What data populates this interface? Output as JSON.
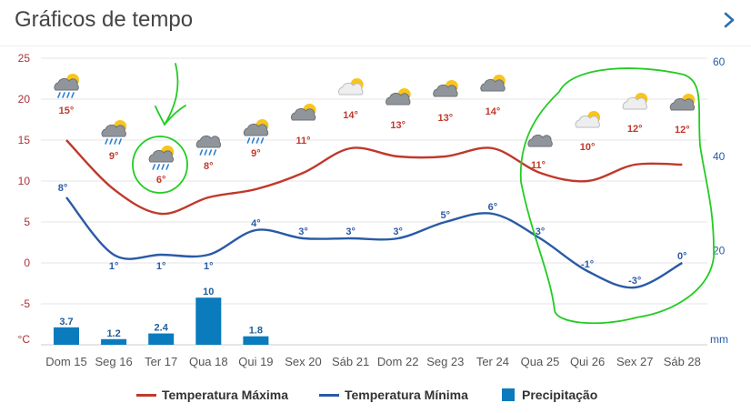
{
  "header": {
    "title": "Gráficos de tempo"
  },
  "colors": {
    "max": "#c0392b",
    "min": "#2a5aa5",
    "precip": "#0a7bbd",
    "grid": "#e6e6e6",
    "left_axis": "#a8333a",
    "right_axis": "#2a5aa5",
    "annotation": "#22cc22"
  },
  "chart_data": {
    "type": "line",
    "categories": [
      "Dom 15",
      "Seg 16",
      "Ter 17",
      "Qua 18",
      "Qui 19",
      "Sex 20",
      "Sáb 21",
      "Dom 22",
      "Seg 23",
      "Ter 24",
      "Qua 25",
      "Qui 26",
      "Sex 27",
      "Sáb 28"
    ],
    "y_left": {
      "ticks": [
        "25",
        "20",
        "15",
        "10",
        "5",
        "0",
        "-5",
        "°C"
      ],
      "ylim": [
        -10,
        25
      ]
    },
    "y_right": {
      "ticks": [
        "60",
        "40",
        "20",
        "mm"
      ],
      "ylim": [
        0,
        60
      ]
    },
    "series": [
      {
        "name": "Temperatura Máxima",
        "type": "line",
        "values": [
          15,
          9,
          6,
          8,
          9,
          11,
          14,
          13,
          13,
          14,
          11,
          10,
          12,
          12
        ],
        "labels": [
          "15°",
          "9°",
          "6°",
          "8°",
          "9°",
          "11°",
          "14°",
          "13°",
          "13°",
          "14°",
          "11°",
          "10°",
          "12°",
          "12°"
        ]
      },
      {
        "name": "Temperatura Mínima",
        "type": "line",
        "values": [
          8,
          1,
          1,
          1,
          4,
          3,
          3,
          3,
          5,
          6,
          3,
          -1,
          -3,
          0
        ],
        "labels": [
          "8°",
          "1°",
          "1°",
          "1°",
          "4°",
          "3°",
          "3°",
          "3°",
          "5°",
          "6°",
          "3°",
          "-1°",
          "-3°",
          "0°"
        ]
      },
      {
        "name": "Precipitação",
        "type": "bar",
        "values": [
          3.7,
          1.2,
          2.4,
          10,
          1.8,
          null,
          null,
          null,
          null,
          null,
          null,
          null,
          null,
          null
        ],
        "labels": [
          "3.7",
          "1.2",
          "2.4",
          "10",
          "1.8",
          "",
          "",
          "",
          "",
          "",
          "",
          "",
          "",
          ""
        ]
      }
    ],
    "weather_icons": [
      "sun-cloud-rain",
      "sun-cloud-rain",
      "sun-cloud-rain",
      "cloud-rain",
      "sun-cloud-rain",
      "sun-cloud",
      "sun-cloud-light",
      "sun-cloud",
      "sun-cloud",
      "sun-cloud",
      "cloud",
      "sun-cloud-light",
      "sun-cloud-light",
      "sun-cloud"
    ],
    "grid": true,
    "legend_position": "bottom"
  },
  "legend": {
    "max_label": "Temperatura Máxima",
    "min_label": "Temperatura Mínima",
    "precip_label": "Precipitação"
  }
}
